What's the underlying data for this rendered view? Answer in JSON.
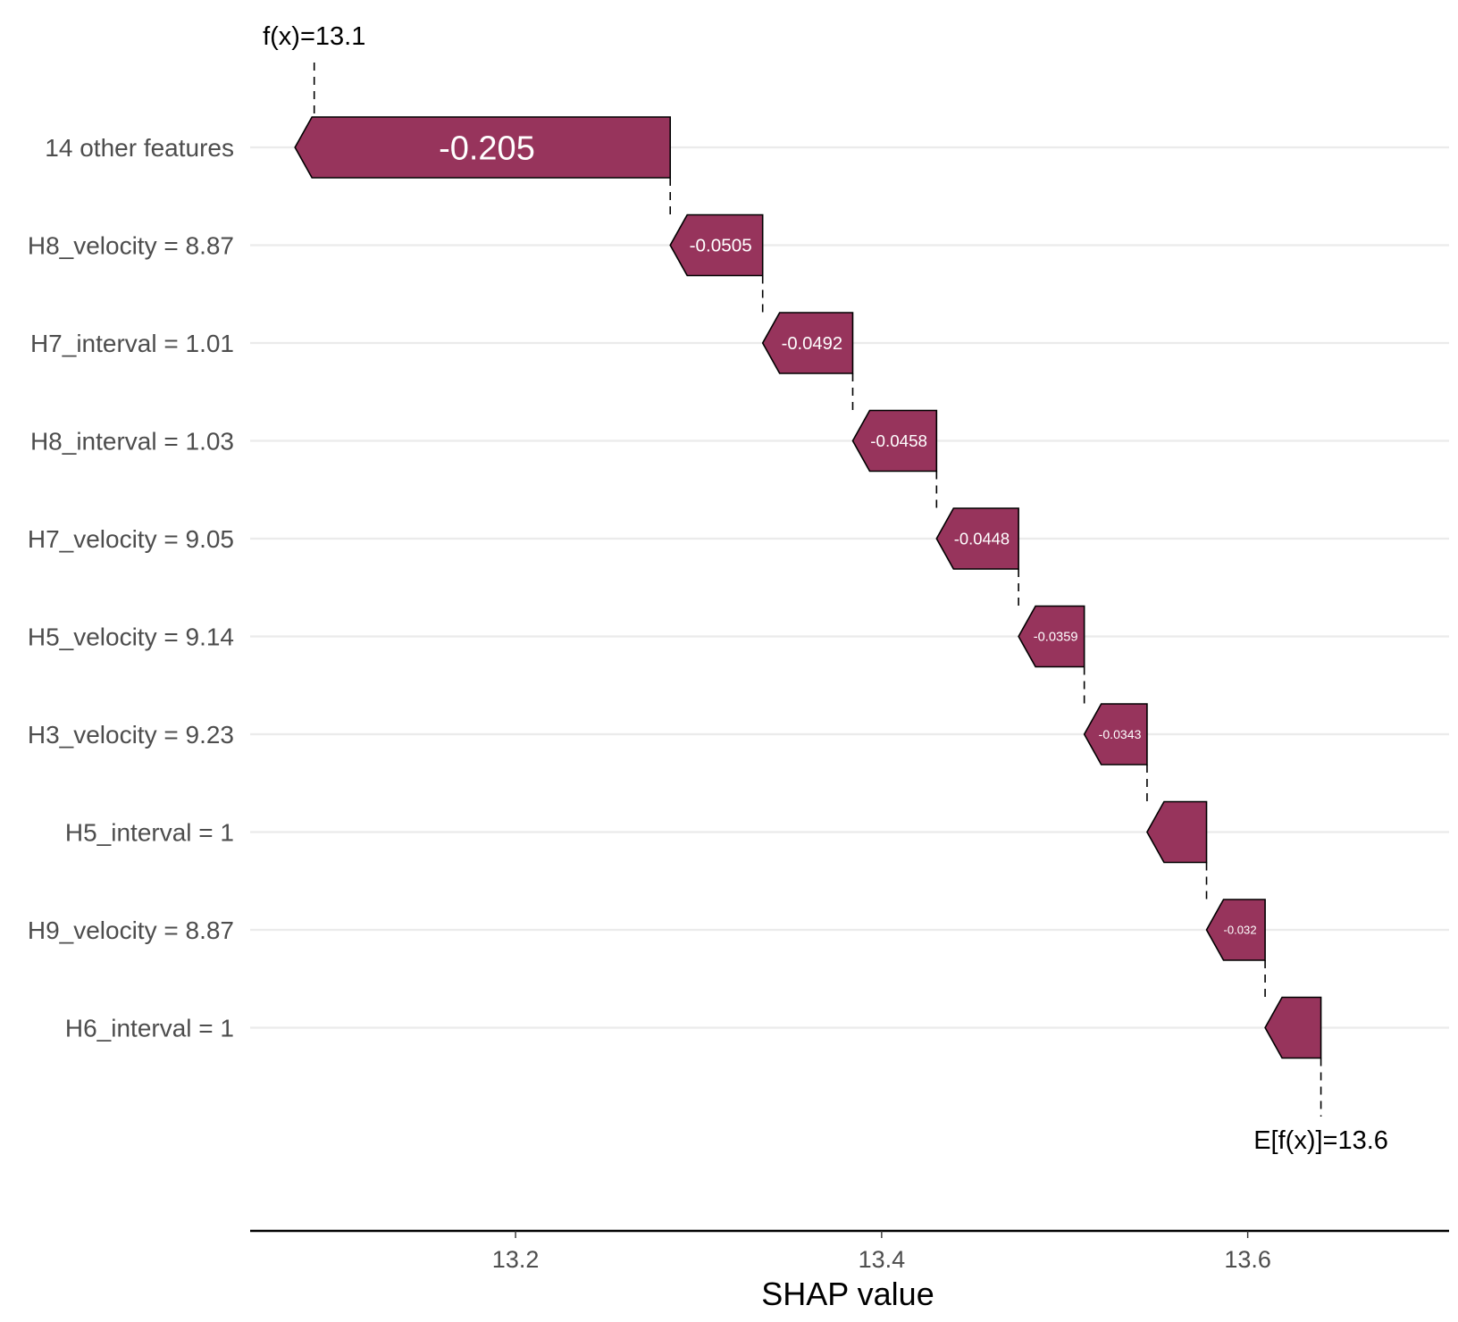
{
  "colors": {
    "bar_fill": "#97345c",
    "bar_stroke": "#000000",
    "gridline": "#ebebeb",
    "label_text": "#4d4d4d",
    "background": "#ffffff"
  },
  "chart_data": {
    "type": "waterfall",
    "xlabel": "SHAP value",
    "xlim": [
      13.055,
      13.71
    ],
    "xticks": [
      13.2,
      13.4,
      13.6
    ],
    "xtick_labels": [
      "13.2",
      "13.4",
      "13.6"
    ],
    "grid": true,
    "fx": 13.09,
    "fx_label": "f(x)=13.1",
    "efx": 13.64,
    "efx_label": "E[f(x)]=13.6",
    "features": [
      {
        "label": "14 other features",
        "value": -0.205,
        "value_label": "-0.205"
      },
      {
        "label": "H8_velocity = 8.87",
        "value": -0.0505,
        "value_label": "-0.0505"
      },
      {
        "label": "H7_interval = 1.01",
        "value": -0.0492,
        "value_label": "-0.0492"
      },
      {
        "label": "H8_interval = 1.03",
        "value": -0.0458,
        "value_label": "-0.0458"
      },
      {
        "label": "H7_velocity = 9.05",
        "value": -0.0448,
        "value_label": "-0.0448"
      },
      {
        "label": "H5_velocity = 9.14",
        "value": -0.0359,
        "value_label": "-0.0359"
      },
      {
        "label": "H3_velocity = 9.23",
        "value": -0.0343,
        "value_label": "-0.0343"
      },
      {
        "label": "H5_interval = 1",
        "value": -0.0325,
        "value_label": ""
      },
      {
        "label": "H9_velocity = 8.87",
        "value": -0.032,
        "value_label": "-0.032"
      },
      {
        "label": "H6_interval = 1",
        "value": -0.0305,
        "value_label": ""
      }
    ]
  }
}
